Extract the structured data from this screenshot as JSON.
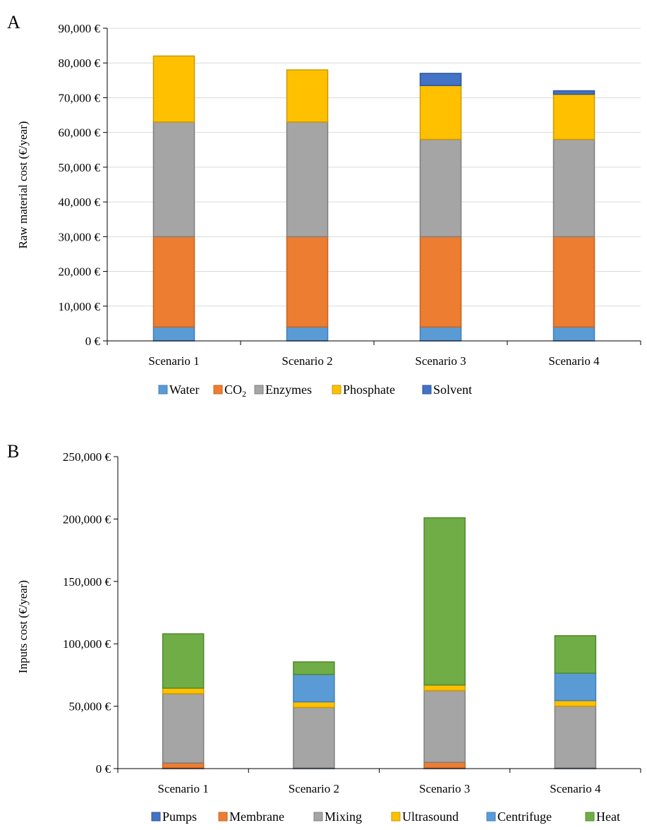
{
  "chart_data": [
    {
      "panel": "A",
      "type": "bar",
      "stacked": true,
      "ylabel": "Raw material cost (€/year)",
      "ylim": [
        0,
        90000
      ],
      "yticks": [
        0,
        10000,
        20000,
        30000,
        40000,
        50000,
        60000,
        70000,
        80000,
        90000
      ],
      "ytick_labels": [
        "0 €",
        "10,000 €",
        "20,000 €",
        "30,000 €",
        "40,000 €",
        "50,000 €",
        "60,000 €",
        "70,000 €",
        "80,000 €",
        "90,000 €"
      ],
      "categories": [
        "Scenario 1",
        "Scenario 2",
        "Scenario 3",
        "Scenario 4"
      ],
      "grid": true,
      "legend_position": "bottom",
      "series": [
        {
          "name": "Water",
          "legend_main": "Water",
          "legend_sub": "",
          "color": "#5b9bd5",
          "stroke": "#3f7fba",
          "values": [
            4000,
            4000,
            4000,
            4000
          ]
        },
        {
          "name": "CO2",
          "legend_main": "CO",
          "legend_sub": "2",
          "color": "#ed7d31",
          "stroke": "#c5651f",
          "values": [
            26000,
            26000,
            26000,
            26000
          ]
        },
        {
          "name": "Enzymes",
          "legend_main": "Enzymes",
          "legend_sub": "",
          "color": "#a5a5a5",
          "stroke": "#7f7f7f",
          "values": [
            33000,
            33000,
            28000,
            28000
          ]
        },
        {
          "name": "Phosphate",
          "legend_main": "Phosphate",
          "legend_sub": "",
          "color": "#ffc000",
          "stroke": "#c99a00",
          "values": [
            19000,
            15000,
            15500,
            13000
          ]
        },
        {
          "name": "Solvent",
          "legend_main": "Solvent",
          "legend_sub": "",
          "color": "#4472c4",
          "stroke": "#2f5597",
          "values": [
            0,
            0,
            3500,
            1000
          ]
        }
      ]
    },
    {
      "panel": "B",
      "type": "bar",
      "stacked": true,
      "ylabel": "Inputs cost (€/year)",
      "ylim": [
        0,
        250000
      ],
      "yticks": [
        0,
        50000,
        100000,
        150000,
        200000,
        250000
      ],
      "ytick_labels": [
        "0 €",
        "50,000 €",
        "100,000 €",
        "150,000 €",
        "200,000 €",
        "250,000 €"
      ],
      "categories": [
        "Scenario 1",
        "Scenario 2",
        "Scenario 3",
        "Scenario 4"
      ],
      "grid": false,
      "legend_position": "bottom",
      "series": [
        {
          "name": "Pumps",
          "legend_main": "Pumps",
          "legend_sub": "",
          "color": "#4472c4",
          "stroke": "#2f5597",
          "values": [
            500,
            500,
            500,
            500
          ]
        },
        {
          "name": "Membrane",
          "legend_main": "Membrane",
          "legend_sub": "",
          "color": "#ed7d31",
          "stroke": "#c5651f",
          "values": [
            4000,
            0,
            4500,
            0
          ]
        },
        {
          "name": "Mixing",
          "legend_main": "Mixing",
          "legend_sub": "",
          "color": "#a5a5a5",
          "stroke": "#7f7f7f",
          "values": [
            55500,
            48500,
            57500,
            49500
          ]
        },
        {
          "name": "Ultrasound",
          "legend_main": "Ultrasound",
          "legend_sub": "",
          "color": "#ffc000",
          "stroke": "#c99a00",
          "values": [
            4500,
            4500,
            4500,
            4500
          ]
        },
        {
          "name": "Centrifuge",
          "legend_main": "Centrifuge",
          "legend_sub": "",
          "color": "#5b9bd5",
          "stroke": "#3f7fba",
          "values": [
            0,
            22000,
            0,
            22000
          ]
        },
        {
          "name": "Heat",
          "legend_main": "Heat",
          "legend_sub": "",
          "color": "#70ad47",
          "stroke": "#4f8a2c",
          "values": [
            43500,
            10000,
            134000,
            30000
          ]
        }
      ]
    }
  ]
}
